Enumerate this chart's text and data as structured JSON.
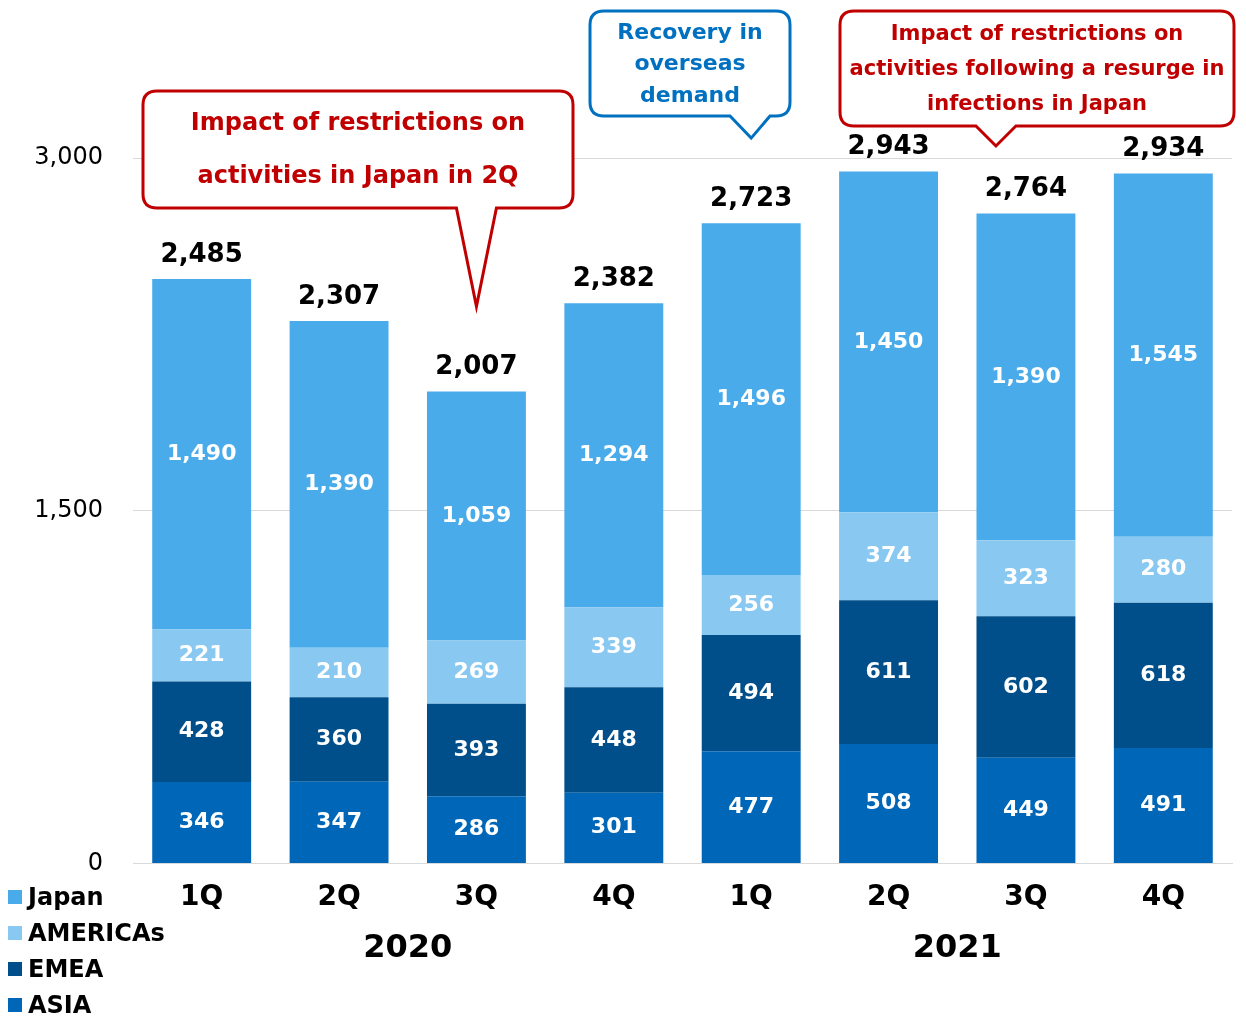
{
  "chart_data": {
    "type": "bar",
    "stacked": true,
    "categories": [
      "1Q",
      "2Q",
      "3Q",
      "4Q",
      "1Q",
      "2Q",
      "3Q",
      "4Q"
    ],
    "series": [
      {
        "name": "ASIA",
        "color": "#0067b8",
        "values": [
          346,
          347,
          286,
          301,
          477,
          508,
          449,
          491
        ],
        "value_labels": [
          "346",
          "347",
          "286",
          "301",
          "477",
          "508",
          "449",
          "491"
        ]
      },
      {
        "name": "EMEA",
        "color": "#004f8a",
        "values": [
          428,
          360,
          393,
          448,
          494,
          611,
          602,
          618
        ],
        "value_labels": [
          "428",
          "360",
          "393",
          "448",
          "494",
          "611",
          "602",
          "618"
        ]
      },
      {
        "name": "AMERICAs",
        "color": "#89c8f0",
        "values": [
          221,
          210,
          269,
          339,
          256,
          374,
          323,
          280
        ],
        "value_labels": [
          "221",
          "210",
          "269",
          "339",
          "256",
          "374",
          "323",
          "280"
        ]
      },
      {
        "name": "Japan",
        "color": "#4aabea",
        "values": [
          1490,
          1390,
          1059,
          1294,
          1496,
          1450,
          1390,
          1545
        ],
        "value_labels": [
          "1,490",
          "1,390",
          "1,059",
          "1,294",
          "1,496",
          "1,450",
          "1,390",
          "1,545"
        ]
      }
    ],
    "totals": [
      "2,485",
      "2,307",
      "2,007",
      "2,382",
      "2,723",
      "2,943",
      "2,764",
      "2,934"
    ],
    "ylim": [
      0,
      3000
    ],
    "yticks": [
      0,
      {
        "value": 1500,
        "label": "1,500"
      },
      {
        "value": 3000,
        "label": "3,000"
      }
    ],
    "grid": "y",
    "legend": "bottom left",
    "annotations": [
      "Impact of restrictions on activities in Japan in 2Q",
      "Recovery in overseas demand",
      "Impact of restrictions on activities following a resurge in infections in Japan",
      "2020",
      "2021"
    ]
  }
}
